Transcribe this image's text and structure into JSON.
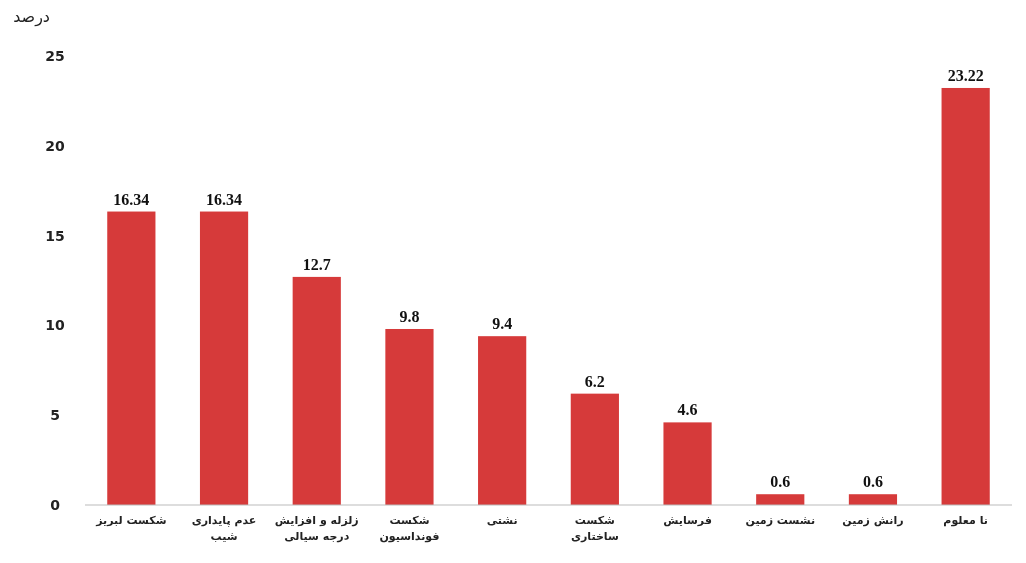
{
  "chart_data": {
    "type": "bar",
    "ylabel": "درصد",
    "categories": [
      "شکست لبریز",
      "عدم پایداری شیب",
      "زلزله و افزایش درجه سیالی",
      "شکست فونداسیون",
      "نشتی",
      "شکست ساختاری",
      "فرسایش",
      "نشست زمین",
      "رانش زمین",
      "نا معلوم"
    ],
    "values": [
      16.34,
      16.34,
      12.7,
      9.8,
      9.4,
      6.2,
      4.6,
      0.6,
      0.6,
      23.22
    ],
    "color": "#d63a3a",
    "ylim": [
      0,
      25
    ],
    "yticks": [
      0,
      5,
      10,
      15,
      20,
      25
    ],
    "data_labels": true,
    "grid": false
  }
}
